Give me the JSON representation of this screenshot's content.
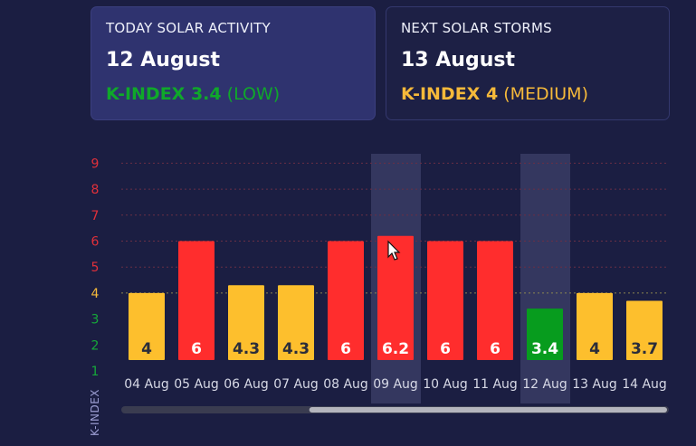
{
  "today": {
    "title": "TODAY SOLAR ACTIVITY",
    "date": "12 August",
    "k_label": "K-INDEX 3.4",
    "level": "(LOW)",
    "color": "#0fa82a"
  },
  "next": {
    "title": "NEXT SOLAR STORMS",
    "date": "13 August",
    "k_label": "K-INDEX 4",
    "level": "(MEDIUM)",
    "color": "#f5b93a"
  },
  "chart_data": {
    "type": "bar",
    "ylabel": "K-INDEX",
    "ylim": [
      1,
      9
    ],
    "yticks": [
      {
        "value": 9,
        "color": "#e0303a"
      },
      {
        "value": 8,
        "color": "#e0303a"
      },
      {
        "value": 7,
        "color": "#e0303a"
      },
      {
        "value": 6,
        "color": "#e0303a"
      },
      {
        "value": 5,
        "color": "#e0303a"
      },
      {
        "value": 4,
        "color": "#f5b93a"
      },
      {
        "value": 3,
        "color": "#16a83a"
      },
      {
        "value": 2,
        "color": "#16a83a"
      },
      {
        "value": 1,
        "color": "#16a83a"
      }
    ],
    "categories": [
      "04 Aug",
      "05 Aug",
      "06 Aug",
      "07 Aug",
      "08 Aug",
      "09 Aug",
      "10 Aug",
      "11 Aug",
      "12 Aug",
      "13 Aug",
      "14 Aug"
    ],
    "values": [
      4,
      6,
      4.3,
      4.3,
      6,
      6.2,
      6,
      6,
      3.4,
      4,
      3.7
    ],
    "labels": [
      "4",
      "6",
      "4.3",
      "4.3",
      "6",
      "6.2",
      "6",
      "6",
      "3.4",
      "4",
      "3.7"
    ],
    "bar_colors": [
      "#fdbf2d",
      "#ff2d2d",
      "#fdbf2d",
      "#fdbf2d",
      "#ff2d2d",
      "#ff2d2d",
      "#ff2d2d",
      "#ff2d2d",
      "#079c1e",
      "#fdbf2d",
      "#fdbf2d"
    ],
    "label_colors": [
      "#2b2d3a",
      "#ffffff",
      "#2b2d3a",
      "#2b2d3a",
      "#ffffff",
      "#ffffff",
      "#ffffff",
      "#ffffff",
      "#ffffff",
      "#2b2d3a",
      "#2b2d3a"
    ],
    "highlighted": [
      "09 Aug",
      "12 Aug"
    ],
    "gridlines": "dotted red above 5, dotted yellow at 4"
  },
  "scrollbar": {
    "position": 0.34,
    "visible_fraction": 0.66
  }
}
